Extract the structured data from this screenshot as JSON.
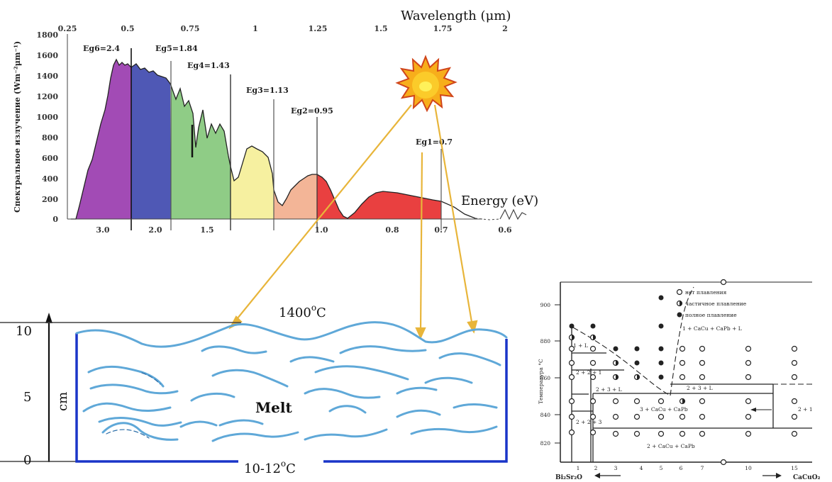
{
  "spectrum": {
    "top_axis_title": "Wavelength (μm)",
    "top_ticks": [
      "0.25",
      "0.5",
      "0.75",
      "1",
      "1.25",
      "1.5",
      "1.75",
      "2"
    ],
    "y_axis_title": "Спектральное излучение (Wm⁻²μm⁻¹)",
    "y_ticks": [
      "1800",
      "1600",
      "1400",
      "1200",
      "1000",
      "800",
      "600",
      "400",
      "200",
      "0"
    ],
    "bottom_axis_title": "Energy (eV)",
    "bottom_ticks": [
      "3.0",
      "2.0",
      "1.5",
      "1.0",
      "0.8",
      "0.7",
      "0.6"
    ],
    "gap_labels": [
      "Eg6=2.4",
      "Eg5=1.84",
      "Eg4=1.43",
      "Eg3=1.13",
      "Eg2=0.95",
      "Eg1=0.7"
    ]
  },
  "melt_vessel": {
    "top_temp_value": "1400",
    "top_temp_unit": "C",
    "bottom_temp_value": "10-12",
    "bottom_temp_unit": "C",
    "label": "Melt",
    "axis_unit": "cm",
    "axis_ticks": [
      "10",
      "5",
      "0"
    ]
  },
  "phase_diagram": {
    "y_axis_title": "Температура °C",
    "y_ticks": [
      "900",
      "880",
      "860",
      "840",
      "820"
    ],
    "x_ticks": [
      "1",
      "2",
      "3",
      "4",
      "5",
      "6",
      "7",
      "10",
      "15"
    ],
    "x_label_left": "Bi₂Sr₂O",
    "x_label_right": "CaCuO₂",
    "legend": [
      "нет плавления",
      "частичное плавление",
      "полное плавление"
    ],
    "region_labels": [
      "1 + CaCu + CaPb + L",
      "2 + 3 + L",
      "3 + CaCu + CaPb",
      "2 + CaCu + CaPb",
      "1 + L",
      "2 + 1",
      "2 + 2 + 1",
      "2 + 3 + L",
      "2 + 2 + 3"
    ]
  },
  "colors": {
    "violet": "#a24bb5",
    "blue": "#4f58b5",
    "green": "#8fcc86",
    "yellow": "#f6f0a0",
    "peach": "#f3b597",
    "red": "#e94040",
    "vessel": "#1a35c8",
    "arrow": "#e8b53a",
    "sun": "#f7ae1b"
  }
}
